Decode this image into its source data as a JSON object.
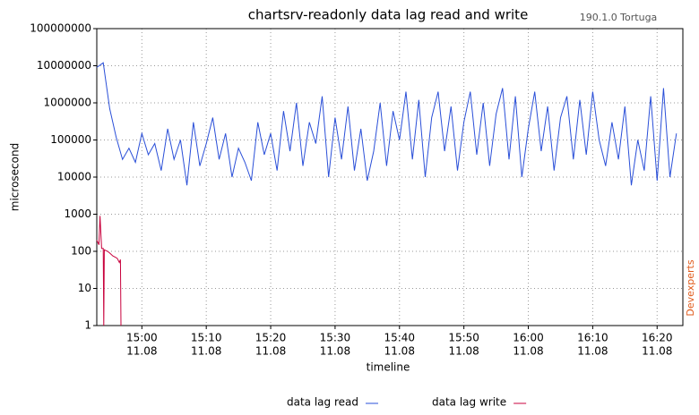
{
  "chart_data": {
    "type": "line",
    "title": "chartsrv-readonly data lag read and write",
    "subtitle": "190.1.0 Tortuga",
    "watermark": "Devexperts",
    "x_label": "timeline",
    "y_label": "microsecond",
    "log_scale": true,
    "grid": true,
    "legend": "bottom",
    "xlim": [
      "14:53",
      "16:24"
    ],
    "xticks": [
      {
        "value": "15:00",
        "label": [
          "15:00",
          "11.08"
        ]
      },
      {
        "value": "15:10",
        "label": [
          "15:10",
          "11.08"
        ]
      },
      {
        "value": "15:20",
        "label": [
          "15:20",
          "11.08"
        ]
      },
      {
        "value": "15:30",
        "label": [
          "15:30",
          "11.08"
        ]
      },
      {
        "value": "15:40",
        "label": [
          "15:40",
          "11.08"
        ]
      },
      {
        "value": "15:50",
        "label": [
          "15:50",
          "11.08"
        ]
      },
      {
        "value": "16:00",
        "label": [
          "16:00",
          "11.08"
        ]
      },
      {
        "value": "16:10",
        "label": [
          "16:10",
          "11.08"
        ]
      },
      {
        "value": "16:20",
        "label": [
          "16:20",
          "11.08"
        ]
      }
    ],
    "ylim": [
      1,
      100000000
    ],
    "yticks": [
      1,
      10,
      100,
      1000,
      10000,
      100000,
      1000000,
      10000000,
      100000000
    ],
    "series": [
      {
        "name": "data lag read",
        "color": "#2a4fd8",
        "x": [
          "14:53",
          "14:54",
          "14:55",
          "14:56",
          "14:57",
          "14:58",
          "14:59",
          "15:00",
          "15:01",
          "15:02",
          "15:03",
          "15:04",
          "15:05",
          "15:06",
          "15:07",
          "15:08",
          "15:09",
          "15:10",
          "15:11",
          "15:12",
          "15:13",
          "15:14",
          "15:15",
          "15:16",
          "15:17",
          "15:18",
          "15:19",
          "15:20",
          "15:21",
          "15:22",
          "15:23",
          "15:24",
          "15:25",
          "15:26",
          "15:27",
          "15:28",
          "15:29",
          "15:30",
          "15:31",
          "15:32",
          "15:33",
          "15:34",
          "15:35",
          "15:36",
          "15:37",
          "15:38",
          "15:39",
          "15:40",
          "15:41",
          "15:42",
          "15:43",
          "15:44",
          "15:45",
          "15:46",
          "15:47",
          "15:48",
          "15:49",
          "15:50",
          "15:51",
          "15:52",
          "15:53",
          "15:54",
          "15:55",
          "15:56",
          "15:57",
          "15:58",
          "15:59",
          "16:00",
          "16:01",
          "16:02",
          "16:03",
          "16:04",
          "16:05",
          "16:06",
          "16:07",
          "16:08",
          "16:09",
          "16:10",
          "16:11",
          "16:12",
          "16:13",
          "16:14",
          "16:15",
          "16:16",
          "16:17",
          "16:18",
          "16:19",
          "16:20",
          "16:21",
          "16:22",
          "16:23"
        ],
        "values": [
          9000000,
          12000000,
          700000,
          120000,
          30000,
          60000,
          25000,
          150000,
          40000,
          80000,
          15000,
          200000,
          30000,
          100000,
          6000,
          300000,
          20000,
          80000,
          400000,
          30000,
          150000,
          10000,
          60000,
          25000,
          8000,
          300000,
          40000,
          150000,
          15000,
          600000,
          50000,
          1000000,
          20000,
          300000,
          80000,
          1500000,
          10000,
          400000,
          30000,
          800000,
          15000,
          200000,
          8000,
          50000,
          1000000,
          20000,
          600000,
          100000,
          2000000,
          30000,
          1200000,
          10000,
          400000,
          2000000,
          50000,
          800000,
          15000,
          300000,
          2000000,
          40000,
          1000000,
          20000,
          500000,
          2500000,
          30000,
          1500000,
          10000,
          200000,
          2000000,
          50000,
          800000,
          15000,
          400000,
          1500000,
          30000,
          1200000,
          40000,
          2000000,
          100000,
          20000,
          300000,
          30000,
          800000,
          6000,
          100000,
          15000,
          1500000,
          8000,
          2500000,
          10000,
          150000
        ]
      },
      {
        "name": "data lag write",
        "color": "#c8003c",
        "x": [
          "14:53:00",
          "14:53:20",
          "14:53:30",
          "14:53:45",
          "14:54:00",
          "14:54:05",
          "14:54:10",
          "14:54:40",
          "14:55:00",
          "14:55:30",
          "14:55:50",
          "14:56:10",
          "14:56:30",
          "14:56:40",
          "14:56:45"
        ],
        "values": [
          200,
          150,
          900,
          120,
          120,
          1,
          110,
          100,
          90,
          75,
          70,
          65,
          50,
          60,
          1
        ]
      }
    ]
  }
}
